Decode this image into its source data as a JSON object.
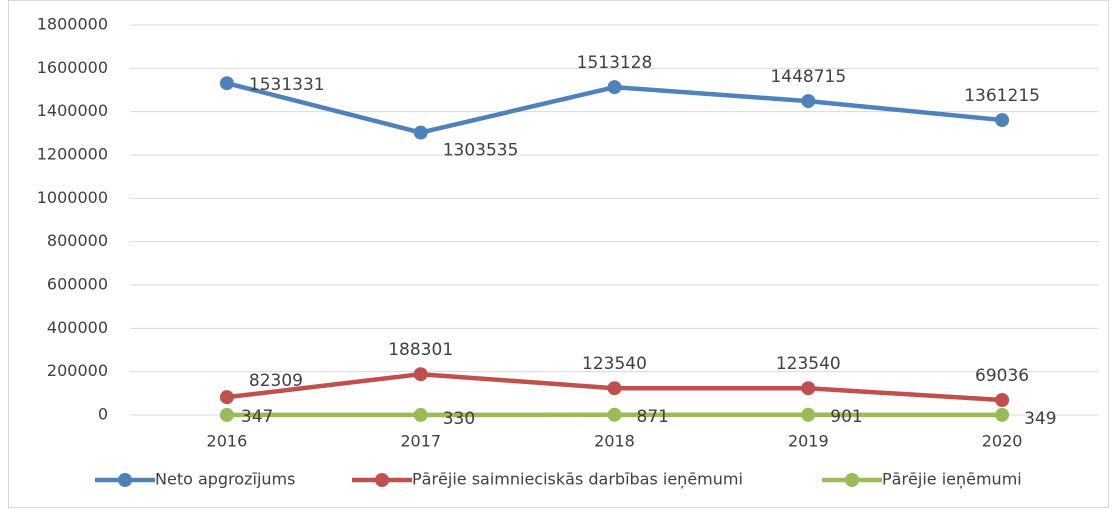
{
  "chart_data": {
    "type": "line",
    "categories": [
      "2016",
      "2017",
      "2018",
      "2019",
      "2020"
    ],
    "series": [
      {
        "name": "Neto apgrozījums",
        "color": "#4f81bd",
        "values": [
          1531331,
          1303535,
          1513128,
          1448715,
          1361215
        ]
      },
      {
        "name": "Pārējie saimnieciskās darbības ieņēmumi",
        "color": "#c0504d",
        "values": [
          82309,
          188301,
          123540,
          123540,
          69036
        ]
      },
      {
        "name": "Pārējie ieņēmumi",
        "color": "#9bbb59",
        "values": [
          347,
          330,
          871,
          901,
          349
        ]
      }
    ],
    "ylim": [
      0,
      1800000
    ],
    "yticks": [
      0,
      200000,
      400000,
      600000,
      800000,
      1000000,
      1200000,
      1400000,
      1600000,
      1800000
    ],
    "grid": true,
    "legend": "bottom"
  }
}
